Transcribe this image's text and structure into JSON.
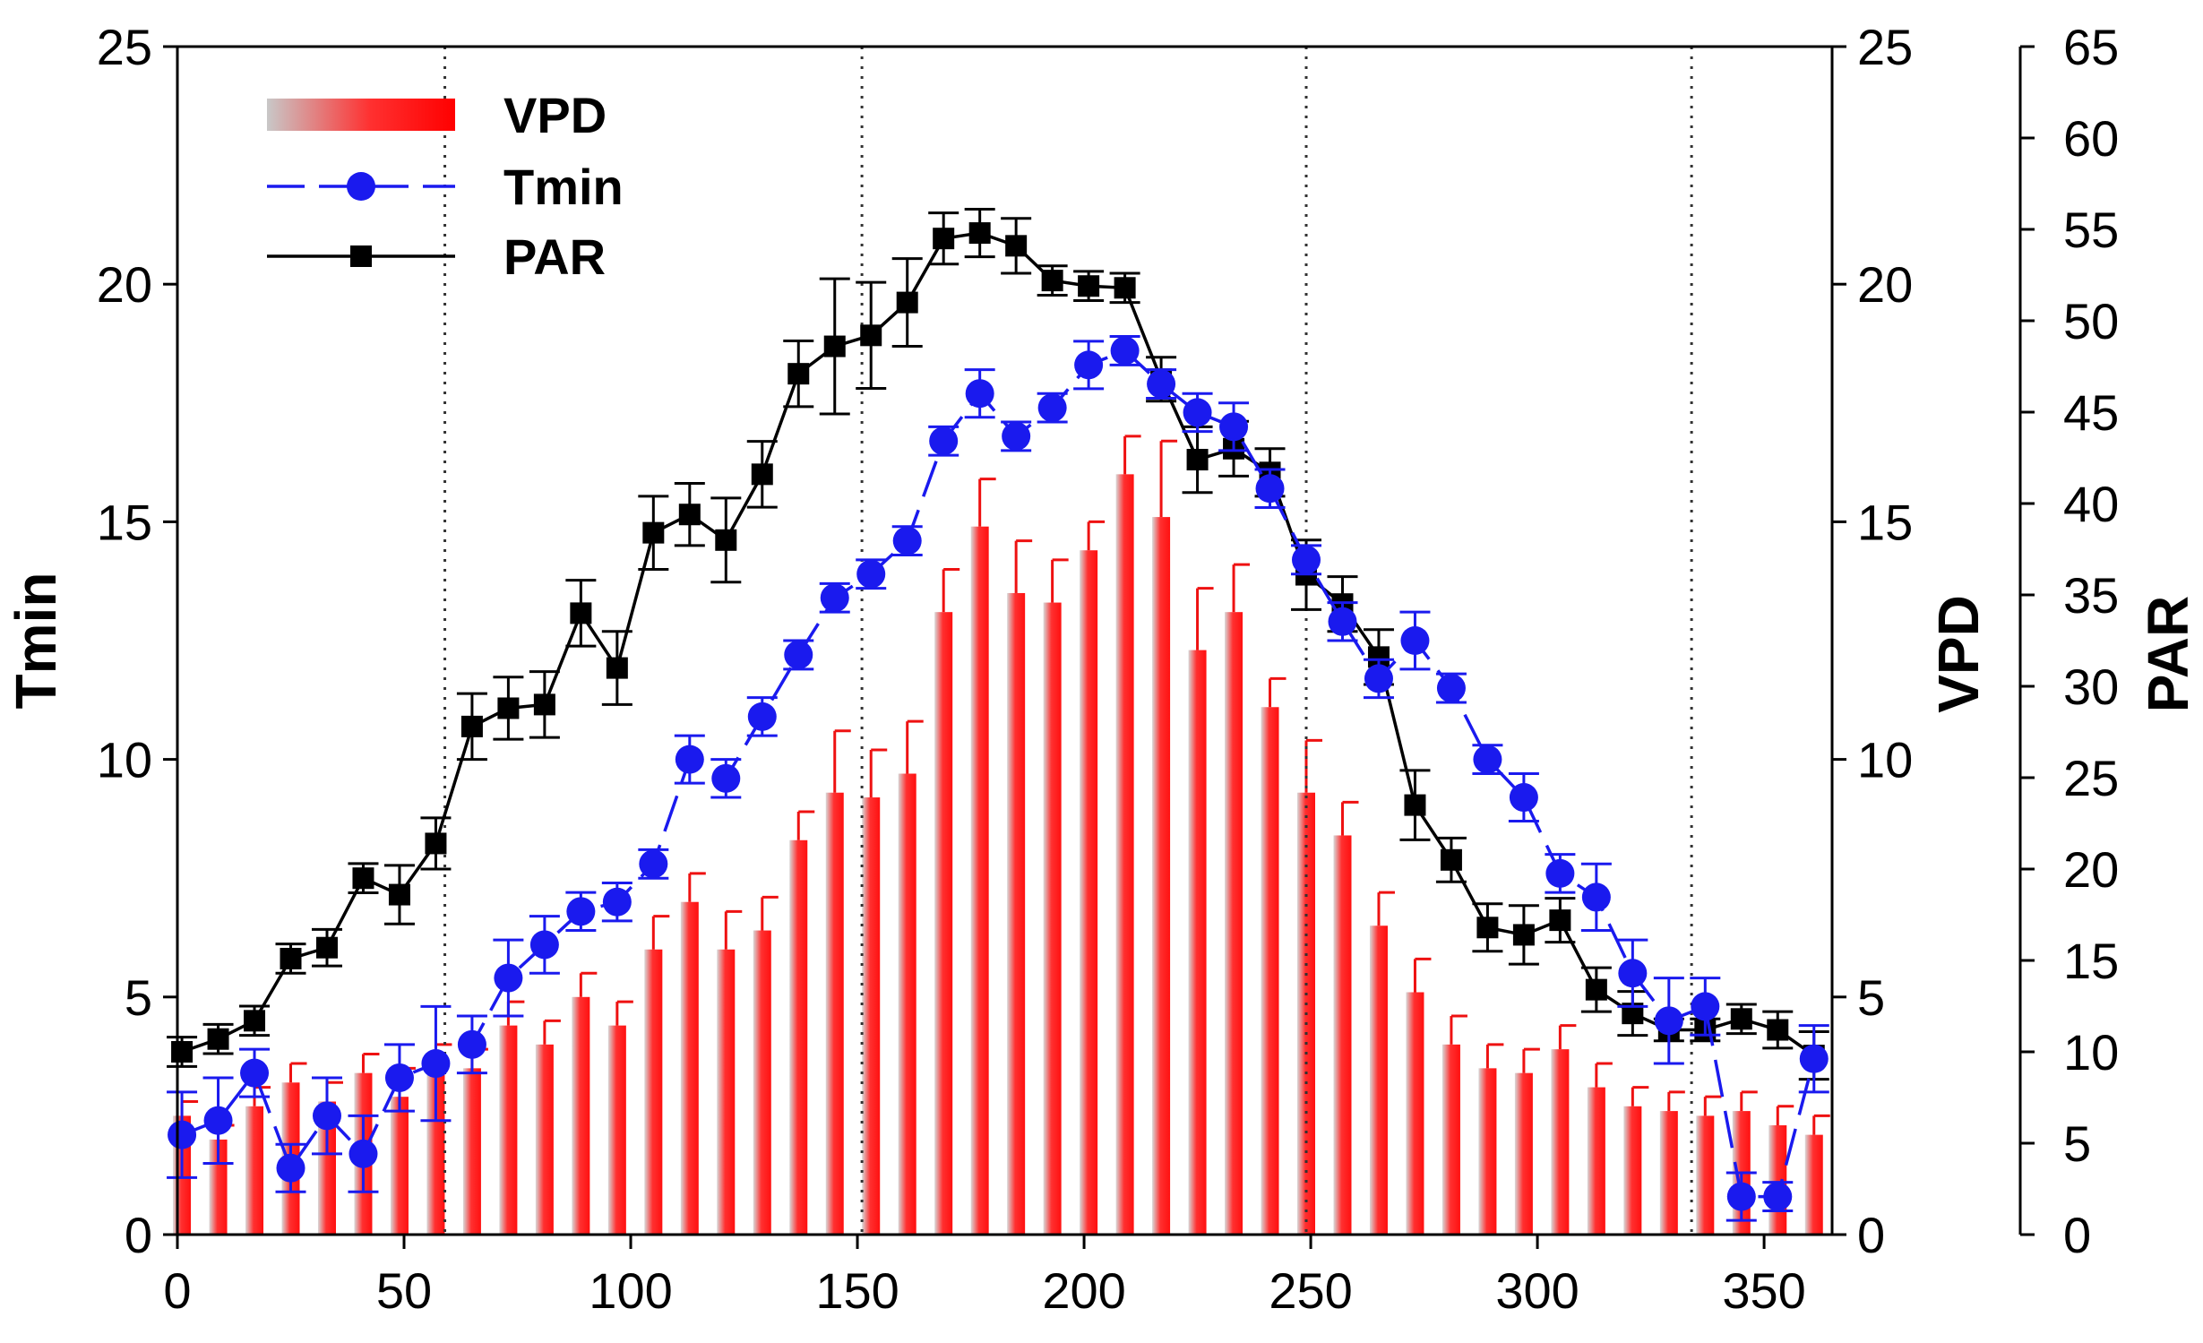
{
  "chart_data": {
    "type": "bar",
    "x": [
      1,
      9,
      17,
      25,
      33,
      41,
      49,
      57,
      65,
      73,
      81,
      89,
      97,
      105,
      113,
      121,
      129,
      137,
      145,
      153,
      161,
      169,
      177,
      185,
      193,
      201,
      209,
      217,
      225,
      233,
      241,
      249,
      257,
      265,
      273,
      281,
      289,
      297,
      305,
      313,
      321,
      329,
      337,
      345,
      353,
      361
    ],
    "xlim": [
      0,
      365
    ],
    "xticks": [
      0,
      50,
      100,
      150,
      200,
      250,
      300,
      350
    ],
    "vlines": [
      59,
      151,
      249,
      334
    ],
    "series": [
      {
        "name": "VPD",
        "axis": "VPD",
        "kind": "bar",
        "values": [
          2.5,
          2.0,
          2.7,
          3.2,
          2.8,
          3.4,
          2.9,
          3.5,
          3.5,
          4.4,
          4.0,
          5.0,
          4.4,
          6.0,
          7.0,
          6.0,
          6.4,
          8.3,
          9.3,
          9.2,
          9.7,
          13.1,
          14.9,
          13.5,
          13.3,
          14.4,
          16.0,
          15.1,
          12.3,
          13.1,
          11.1,
          9.3,
          8.4,
          6.5,
          5.1,
          4.0,
          3.5,
          3.4,
          3.9,
          3.1,
          2.7,
          2.6,
          2.5,
          2.6,
          2.3,
          2.1
        ],
        "err": [
          0.3,
          0.3,
          0.4,
          0.4,
          0.4,
          0.4,
          0.6,
          0.5,
          0.4,
          0.5,
          0.5,
          0.5,
          0.5,
          0.7,
          0.6,
          0.8,
          0.7,
          0.6,
          1.3,
          1.0,
          1.1,
          0.9,
          1.0,
          1.1,
          0.9,
          0.6,
          0.8,
          1.6,
          1.3,
          1.0,
          0.6,
          1.1,
          0.7,
          0.7,
          0.7,
          0.6,
          0.5,
          0.5,
          0.5,
          0.5,
          0.4,
          0.4,
          0.4,
          0.4,
          0.4,
          0.4
        ]
      },
      {
        "name": "Tmin",
        "axis": "Tmin",
        "kind": "line",
        "values": [
          2.1,
          2.4,
          3.4,
          1.4,
          2.5,
          1.7,
          3.3,
          3.6,
          4.0,
          5.4,
          6.1,
          6.8,
          7.0,
          7.8,
          10.0,
          9.6,
          10.9,
          12.2,
          13.4,
          13.9,
          14.6,
          16.7,
          17.7,
          16.8,
          17.4,
          18.3,
          18.6,
          17.9,
          17.3,
          17.0,
          15.7,
          14.2,
          12.9,
          11.7,
          12.5,
          11.5,
          10.0,
          9.2,
          7.6,
          7.1,
          5.5,
          4.5,
          4.8,
          0.8,
          0.8,
          3.7
        ],
        "err": [
          0.9,
          0.9,
          0.5,
          0.5,
          0.8,
          0.8,
          0.7,
          1.2,
          0.6,
          0.8,
          0.6,
          0.4,
          0.4,
          0.3,
          0.5,
          0.4,
          0.4,
          0.3,
          0.3,
          0.3,
          0.3,
          0.3,
          0.5,
          0.3,
          0.3,
          0.5,
          0.3,
          0.3,
          0.4,
          0.5,
          0.4,
          0.3,
          0.4,
          0.4,
          0.6,
          0.3,
          0.3,
          0.5,
          0.4,
          0.7,
          0.7,
          0.9,
          0.6,
          0.5,
          0.3,
          0.7
        ]
      },
      {
        "name": "PAR",
        "axis": "PAR",
        "kind": "line",
        "values": [
          10.0,
          10.7,
          11.7,
          15.1,
          15.7,
          19.5,
          18.6,
          21.4,
          27.8,
          28.8,
          29.0,
          34.0,
          31.0,
          38.4,
          39.4,
          38.0,
          41.6,
          47.1,
          48.6,
          49.2,
          51.0,
          54.5,
          54.8,
          54.1,
          52.2,
          51.9,
          51.8,
          46.8,
          42.4,
          43.0,
          41.7,
          36.1,
          34.5,
          31.6,
          23.5,
          20.5,
          16.8,
          16.4,
          17.2,
          13.4,
          12.1,
          11.2,
          11.2,
          11.8,
          11.2,
          9.8
        ],
        "err": [
          0.8,
          0.8,
          0.8,
          0.8,
          1.0,
          0.8,
          1.6,
          1.4,
          1.8,
          1.7,
          1.8,
          1.8,
          2.0,
          2.0,
          1.7,
          2.3,
          1.8,
          1.8,
          3.7,
          2.9,
          2.4,
          1.4,
          1.3,
          1.5,
          0.8,
          0.8,
          0.8,
          1.2,
          1.8,
          1.5,
          1.3,
          1.9,
          1.5,
          1.5,
          1.9,
          1.2,
          1.3,
          1.6,
          1.2,
          1.2,
          1.2,
          0.6,
          0.6,
          0.8,
          1.0,
          1.3
        ]
      }
    ],
    "axes": {
      "left": {
        "label": "Tmin",
        "range": [
          0,
          25
        ],
        "ticks": [
          0,
          5,
          10,
          15,
          20,
          25
        ]
      },
      "right1": {
        "label": "VPD",
        "range": [
          0,
          25
        ],
        "ticks": [
          0,
          5,
          10,
          15,
          20,
          25
        ]
      },
      "right2": {
        "label": "PAR",
        "range": [
          0,
          65
        ],
        "ticks": [
          0,
          5,
          10,
          15,
          20,
          25,
          30,
          35,
          40,
          45,
          50,
          55,
          60,
          65
        ]
      }
    },
    "legend": {
      "placement": "top-left",
      "items": [
        "VPD",
        "Tmin",
        "PAR"
      ]
    },
    "colors": {
      "bar_dark": "#ff2020",
      "bar_light": "#d8d8d8",
      "bar_err": "#ee1111",
      "tmin": "#1a1aee",
      "par": "#000000",
      "vline": "#333333"
    },
    "grid": false,
    "title": "",
    "xlabel": ""
  }
}
